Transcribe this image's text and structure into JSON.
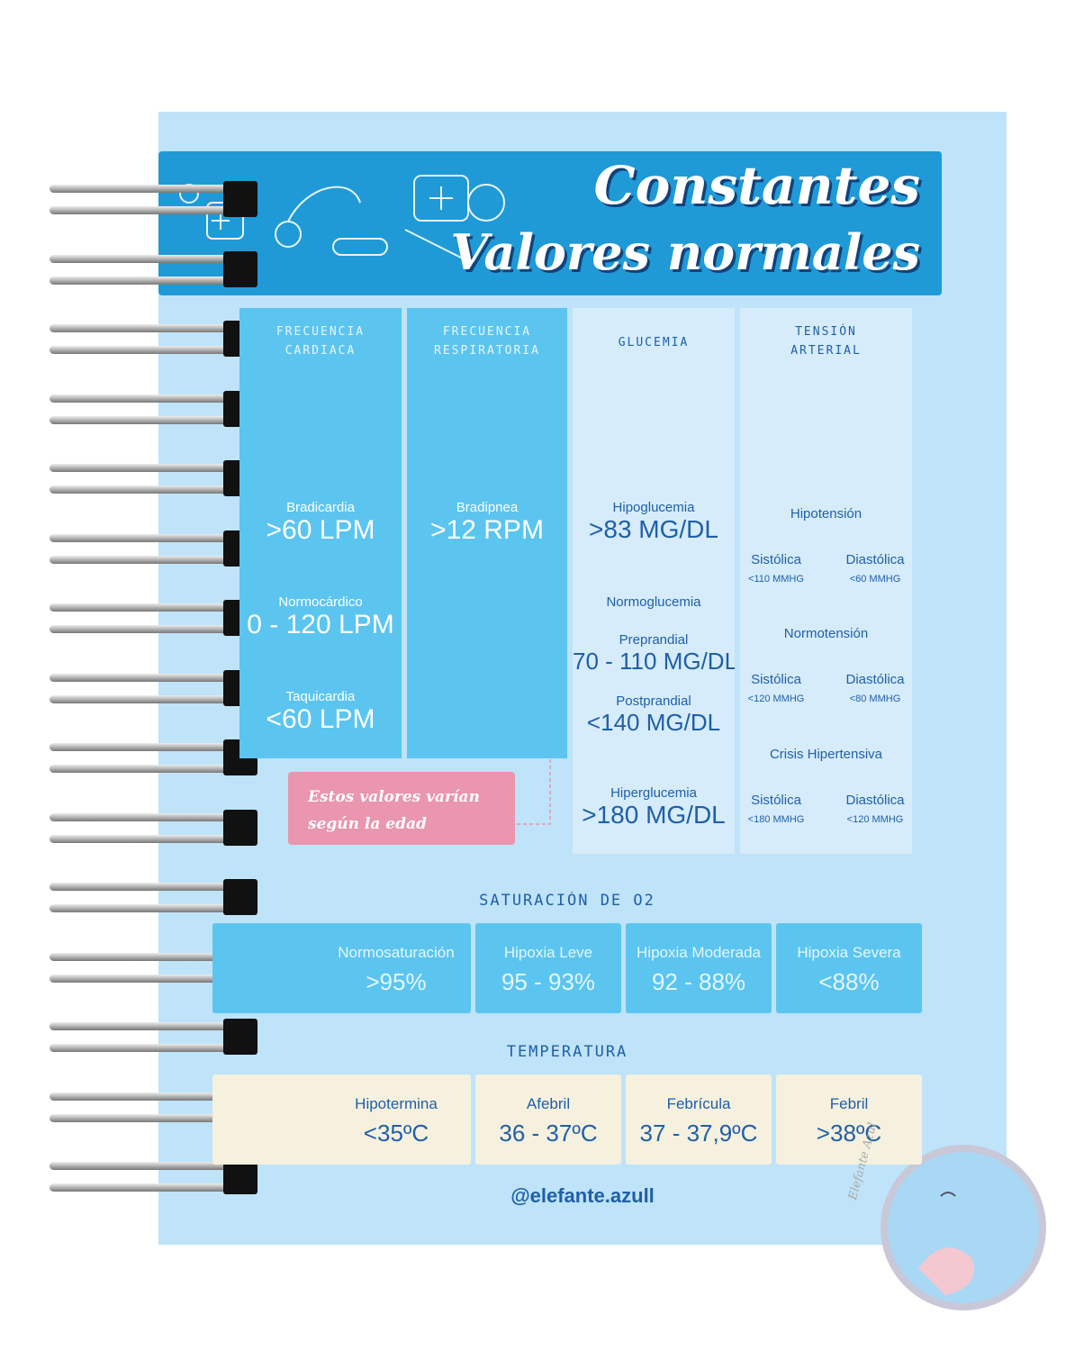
{
  "header": {
    "title": "Constantes",
    "subtitle": "Valores normales"
  },
  "cardiac": {
    "title": "FRECUENCIA CARDIACA",
    "items": [
      {
        "label": "Bradicardia",
        "value": ">60 LPM"
      },
      {
        "label": "Normocárdico",
        "value": "0 - 120 LPM"
      },
      {
        "label": "Taquicardia",
        "value": "<60  LPM"
      }
    ]
  },
  "respiratory": {
    "title": "FRECUENCIA RESPIRATORIA",
    "items": [
      {
        "label": "Bradipnea",
        "value": ">12 RPM"
      }
    ]
  },
  "glucose": {
    "title": "GLUCEMIA",
    "hypo": {
      "label": "Hipoglucemia",
      "value": ">83 MG/DL"
    },
    "normal": {
      "label": "Normoglucemia",
      "items": [
        {
          "label": "Preprandial",
          "value": "70 - 110 MG/DL"
        },
        {
          "label": "Postprandial",
          "value": "<140 MG/DL"
        }
      ]
    },
    "hyper": {
      "label": "Hiperglucemia",
      "value": ">180 MG/DL"
    }
  },
  "pressure": {
    "title": "TENSIÓN ARTERIAL",
    "groups": [
      {
        "label": "Hipotensión",
        "items": [
          {
            "label": "Sistólica",
            "value": "<110 MMHG"
          },
          {
            "label": "Diastólica",
            "value": "<60 MMHG"
          }
        ]
      },
      {
        "label": "Normotensión",
        "items": [
          {
            "label": "Sistólica",
            "value": "<120 MMHG"
          },
          {
            "label": "Diastólica",
            "value": "<80 MMHG"
          }
        ]
      },
      {
        "label": "Crisis Hipertensiva",
        "items": [
          {
            "label": "Sistólica",
            "value": "<180 MMHG"
          },
          {
            "label": "Diastólica",
            "value": "<120 MMHG"
          }
        ]
      }
    ]
  },
  "note": "Estos valores varían según la edad",
  "saturation": {
    "title": "SATURACIÓN DE O2",
    "items": [
      {
        "label": "Normosaturación",
        "value": ">95%"
      },
      {
        "label": "Hipoxia Leve",
        "value": "95 - 93%"
      },
      {
        "label": "Hipoxia Moderada",
        "value": "92 - 88%"
      },
      {
        "label": "Hipoxia Severa",
        "value": "<88%"
      }
    ]
  },
  "temperature": {
    "title": "TEMPERATURA",
    "items": [
      {
        "label": "Hipotermina",
        "value": "<35ºC"
      },
      {
        "label": "Afebril",
        "value": "36 - 37ºC"
      },
      {
        "label": "Febrícula",
        "value": "37 - 37,9ºC"
      },
      {
        "label": "Febril",
        "value": ">38ºC"
      }
    ]
  },
  "footer": "@elefante.azull",
  "watermark": "Elefante Azul"
}
